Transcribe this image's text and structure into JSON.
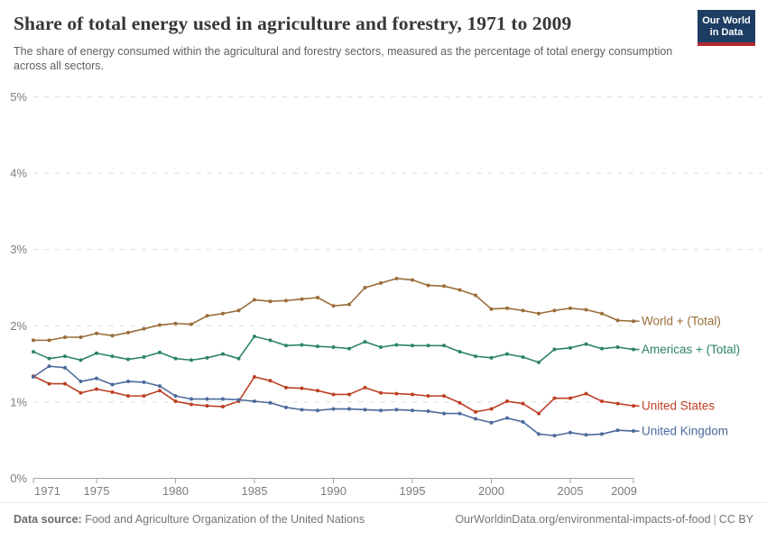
{
  "header": {
    "title": "Share of total energy used in agriculture and forestry, 1971 to 2009",
    "subtitle": "The share of energy consumed within the agricultural and forestry sectors, measured as the percentage of total energy consumption across all sectors.",
    "logo": {
      "line1": "Our World",
      "line2": "in Data"
    }
  },
  "footer": {
    "datasource_label": "Data source:",
    "datasource_text": "Food and Agriculture Organization of the United Nations",
    "link": "OurWorldinData.org/environmental-impacts-of-food",
    "separator": "|",
    "license": "CC BY"
  },
  "colors": {
    "logo_navy": "#1d3d63",
    "logo_red": "#b22a31",
    "axis_line": "#a3a3a3",
    "gridline": "#dcdcdc",
    "axis_text": "#7d7d7d"
  },
  "chart_data": {
    "type": "line",
    "title": "Share of total energy used in agriculture and forestry, 1971 to 2009",
    "x": [
      1971,
      1972,
      1973,
      1974,
      1975,
      1976,
      1977,
      1978,
      1979,
      1980,
      1981,
      1982,
      1983,
      1984,
      1985,
      1986,
      1987,
      1988,
      1989,
      1990,
      1991,
      1992,
      1993,
      1994,
      1995,
      1996,
      1997,
      1998,
      1999,
      2000,
      2001,
      2002,
      2003,
      2004,
      2005,
      2006,
      2007,
      2008,
      2009
    ],
    "xticks": [
      1971,
      1975,
      1980,
      1985,
      1990,
      1995,
      2000,
      2005,
      2009
    ],
    "yticks_labels": [
      "0%",
      "1%",
      "2%",
      "3%",
      "4%",
      "5%"
    ],
    "ylim": [
      0,
      5
    ],
    "grid": "horizontal dashed",
    "legend_position": "right of line ends",
    "series": [
      {
        "name": "World + (Total)",
        "color": "#996D39",
        "values": [
          1.81,
          1.81,
          1.85,
          1.85,
          1.9,
          1.87,
          1.91,
          1.96,
          2.01,
          2.03,
          2.02,
          2.13,
          2.16,
          2.2,
          2.34,
          2.32,
          2.33,
          2.35,
          2.37,
          2.26,
          2.28,
          2.5,
          2.56,
          2.62,
          2.6,
          2.53,
          2.52,
          2.47,
          2.4,
          2.22,
          2.23,
          2.2,
          2.16,
          2.2,
          2.23,
          2.21,
          2.16,
          2.07,
          2.06
        ]
      },
      {
        "name": "Americas + (Total)",
        "color": "#2C8465",
        "values": [
          1.66,
          1.57,
          1.6,
          1.55,
          1.64,
          1.6,
          1.56,
          1.59,
          1.65,
          1.57,
          1.55,
          1.58,
          1.63,
          1.57,
          1.86,
          1.81,
          1.74,
          1.75,
          1.73,
          1.72,
          1.7,
          1.79,
          1.72,
          1.75,
          1.74,
          1.74,
          1.74,
          1.66,
          1.6,
          1.58,
          1.63,
          1.59,
          1.52,
          1.69,
          1.71,
          1.76,
          1.7,
          1.72,
          1.69
        ]
      },
      {
        "name": "United States",
        "color": "#BC4025",
        "values": [
          1.34,
          1.24,
          1.24,
          1.12,
          1.17,
          1.13,
          1.08,
          1.08,
          1.15,
          1.01,
          0.97,
          0.95,
          0.94,
          1.01,
          1.33,
          1.28,
          1.19,
          1.18,
          1.15,
          1.1,
          1.1,
          1.19,
          1.12,
          1.11,
          1.1,
          1.08,
          1.08,
          0.99,
          0.87,
          0.91,
          1.01,
          0.98,
          0.85,
          1.05,
          1.05,
          1.11,
          1.01,
          0.98,
          0.95
        ]
      },
      {
        "name": "United Kingdom",
        "color": "#4C6A9C",
        "values": [
          1.33,
          1.47,
          1.45,
          1.27,
          1.31,
          1.23,
          1.27,
          1.26,
          1.21,
          1.08,
          1.04,
          1.04,
          1.04,
          1.03,
          1.01,
          0.99,
          0.93,
          0.9,
          0.89,
          0.91,
          0.91,
          0.9,
          0.89,
          0.9,
          0.89,
          0.88,
          0.85,
          0.85,
          0.78,
          0.73,
          0.79,
          0.74,
          0.58,
          0.56,
          0.6,
          0.57,
          0.58,
          0.63,
          0.62
        ]
      }
    ]
  }
}
